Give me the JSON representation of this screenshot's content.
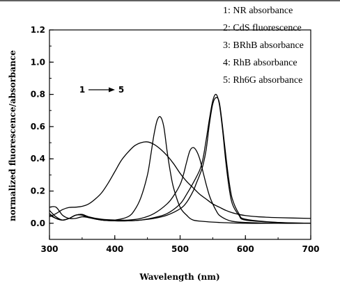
{
  "chart_data": {
    "type": "line",
    "xlabel": "Wavelength (nm)",
    "ylabel": "normalized fluorescence/absorbance",
    "xlim": [
      300,
      700
    ],
    "ylim": [
      -0.1,
      1.2
    ],
    "xticks": [
      300,
      400,
      500,
      600,
      700
    ],
    "yticks": [
      0.0,
      0.2,
      0.4,
      0.6,
      0.8,
      1.0,
      1.2
    ],
    "legend_position": "top-right",
    "line_color": "#000000",
    "annotation": {
      "start": "1",
      "end": "5",
      "x": 328,
      "y": 0.88
    },
    "series": [
      {
        "name": "1: NR absorbance",
        "x": [
          300,
          310,
          320,
          330,
          340,
          350,
          360,
          370,
          380,
          390,
          400,
          410,
          420,
          430,
          440,
          450,
          460,
          470,
          480,
          490,
          500,
          510,
          520,
          530,
          540,
          550,
          560,
          570,
          580,
          590,
          600,
          620,
          650,
          700
        ],
        "y": [
          0.04,
          0.06,
          0.085,
          0.098,
          0.1,
          0.105,
          0.12,
          0.15,
          0.19,
          0.25,
          0.32,
          0.39,
          0.44,
          0.48,
          0.5,
          0.505,
          0.49,
          0.46,
          0.42,
          0.37,
          0.31,
          0.26,
          0.22,
          0.18,
          0.15,
          0.12,
          0.1,
          0.08,
          0.065,
          0.055,
          0.048,
          0.04,
          0.035,
          0.03
        ]
      },
      {
        "name": "2: CdS fluorescence",
        "x": [
          300,
          310,
          320,
          330,
          340,
          350,
          360,
          380,
          400,
          420,
          430,
          440,
          450,
          455,
          460,
          465,
          470,
          475,
          480,
          485,
          490,
          500,
          510,
          520,
          540,
          560,
          600,
          650,
          700
        ],
        "y": [
          0.1,
          0.1,
          0.05,
          0.03,
          0.03,
          0.04,
          0.035,
          0.02,
          0.02,
          0.04,
          0.08,
          0.16,
          0.3,
          0.42,
          0.55,
          0.64,
          0.66,
          0.6,
          0.45,
          0.32,
          0.22,
          0.1,
          0.05,
          0.02,
          0.01,
          0.005,
          0.0,
          0.0,
          0.0
        ]
      },
      {
        "name": "3: BRhB absorbance",
        "x": [
          300,
          310,
          320,
          330,
          340,
          350,
          360,
          380,
          400,
          420,
          440,
          460,
          480,
          490,
          500,
          505,
          510,
          515,
          520,
          525,
          530,
          535,
          540,
          545,
          550,
          555,
          560,
          570,
          580,
          600,
          650,
          700
        ],
        "y": [
          0.08,
          0.04,
          0.02,
          0.03,
          0.05,
          0.055,
          0.04,
          0.025,
          0.02,
          0.02,
          0.03,
          0.06,
          0.12,
          0.17,
          0.24,
          0.3,
          0.38,
          0.45,
          0.47,
          0.45,
          0.4,
          0.32,
          0.24,
          0.17,
          0.12,
          0.08,
          0.05,
          0.025,
          0.012,
          0.005,
          0.0,
          0.0
        ]
      },
      {
        "name": "4: RhB absorbance",
        "x": [
          300,
          310,
          320,
          330,
          340,
          350,
          360,
          380,
          400,
          420,
          440,
          460,
          480,
          500,
          510,
          520,
          530,
          535,
          540,
          545,
          550,
          555,
          560,
          565,
          570,
          575,
          580,
          590,
          600,
          650,
          700
        ],
        "y": [
          0.06,
          0.03,
          0.02,
          0.03,
          0.05,
          0.05,
          0.035,
          0.02,
          0.015,
          0.015,
          0.02,
          0.035,
          0.06,
          0.12,
          0.18,
          0.25,
          0.33,
          0.4,
          0.52,
          0.65,
          0.76,
          0.8,
          0.74,
          0.58,
          0.38,
          0.22,
          0.12,
          0.05,
          0.02,
          0.005,
          0.0
        ]
      },
      {
        "name": "5: Rh6G absorbance",
        "x": [
          300,
          310,
          320,
          330,
          340,
          350,
          360,
          380,
          400,
          420,
          440,
          460,
          480,
          500,
          510,
          520,
          525,
          530,
          535,
          540,
          545,
          550,
          555,
          560,
          565,
          570,
          575,
          580,
          590,
          600,
          650,
          700
        ],
        "y": [
          0.05,
          0.03,
          0.02,
          0.03,
          0.05,
          0.055,
          0.04,
          0.02,
          0.015,
          0.015,
          0.02,
          0.03,
          0.05,
          0.09,
          0.13,
          0.2,
          0.25,
          0.3,
          0.36,
          0.46,
          0.62,
          0.74,
          0.78,
          0.75,
          0.6,
          0.42,
          0.26,
          0.15,
          0.06,
          0.025,
          0.005,
          0.0
        ]
      }
    ]
  }
}
